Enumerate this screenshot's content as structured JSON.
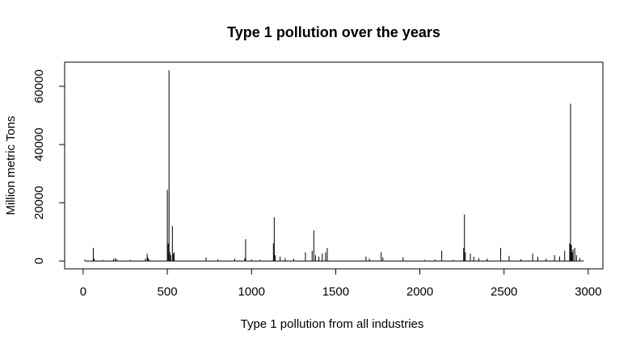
{
  "chart_data": {
    "type": "spike",
    "title": "Type 1 pollution over the years",
    "x_label": "Type 1 pollution from all industries",
    "y_label": "Million metric Tons",
    "color": "#000000",
    "x": [
      10,
      60,
      65,
      120,
      180,
      190,
      200,
      280,
      370,
      380,
      385,
      390,
      500,
      505,
      510,
      515,
      520,
      530,
      535,
      540,
      730,
      800,
      900,
      960,
      965,
      1000,
      1050,
      1130,
      1135,
      1140,
      1170,
      1200,
      1250,
      1320,
      1360,
      1370,
      1380,
      1400,
      1420,
      1440,
      1450,
      1680,
      1700,
      1770,
      1780,
      1900,
      2030,
      2090,
      2130,
      2200,
      2260,
      2265,
      2270,
      2300,
      2320,
      2350,
      2400,
      2480,
      2530,
      2600,
      2670,
      2700,
      2750,
      2800,
      2830,
      2860,
      2890,
      2895,
      2900,
      2905,
      2910,
      2920,
      2930,
      2950,
      2970
    ],
    "values": [
      500,
      4500,
      800,
      300,
      700,
      1000,
      600,
      400,
      800,
      2500,
      1200,
      600,
      24500,
      6000,
      65500,
      3000,
      2000,
      12000,
      2500,
      3000,
      1200,
      500,
      800,
      1000,
      7500,
      500,
      400,
      6000,
      15000,
      2000,
      1500,
      1000,
      800,
      3000,
      3500,
      10500,
      2000,
      1500,
      2500,
      3000,
      4500,
      1500,
      800,
      3000,
      1200,
      1300,
      400,
      500,
      3500,
      400,
      4500,
      16000,
      3000,
      2500,
      1500,
      1000,
      800,
      4500,
      1800,
      600,
      2500,
      1500,
      800,
      2000,
      1500,
      3500,
      6000,
      54000,
      5500,
      3000,
      4000,
      4500,
      2000,
      1000,
      300
    ],
    "xlim": [
      -110,
      3087
    ],
    "ylim": [
      -2700,
      68300
    ],
    "xticks": [
      0,
      500,
      1000,
      1500,
      2000,
      2500,
      3000
    ],
    "yticks": [
      0,
      20000,
      40000,
      60000
    ]
  }
}
